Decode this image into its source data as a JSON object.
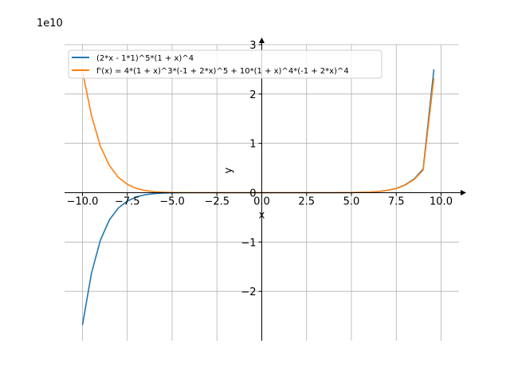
{
  "chart_data": {
    "type": "line",
    "title": "",
    "xlabel": "x",
    "ylabel": "y",
    "offset_text": "1e10",
    "xlim": [
      -11,
      11
    ],
    "ylim": [
      -3.0,
      3.0
    ],
    "y_scale_factor": 10000000000,
    "grid": true,
    "legend_position": "upper-left",
    "x_ticks": [
      "−10.0",
      "−7.5",
      "−5.0",
      "−2.5",
      "0.0",
      "2.5",
      "5.0",
      "7.5",
      "10.0"
    ],
    "x_tick_values": [
      -10,
      -7.5,
      -5,
      -2.5,
      0,
      2.5,
      5,
      7.5,
      10
    ],
    "y_ticks": [
      "−2",
      "−1",
      "0",
      "1",
      "2",
      "3"
    ],
    "y_tick_values": [
      -2,
      -1,
      0,
      1,
      2,
      3
    ],
    "series": [
      {
        "name": "(2*x - 1*1)^5*(1 + x)^4",
        "color": "#1f77b4",
        "x": [
          -10,
          -9.5,
          -9,
          -8.5,
          -8,
          -7.5,
          -7,
          -6.5,
          -6,
          -5.5,
          -5,
          -4,
          -3,
          -2,
          -1,
          0,
          1,
          2,
          3,
          4,
          5,
          5.5,
          6,
          6.5,
          7,
          7.5,
          8,
          8.5,
          9,
          9.6
        ],
        "y": [
          -2.68,
          -1.63,
          -0.96,
          -0.55,
          -0.31,
          -0.17,
          -0.085,
          -0.041,
          -0.019,
          -0.008,
          -0.003,
          0,
          0,
          0,
          0,
          0,
          0,
          0,
          0,
          0.0001,
          0.003,
          0.006,
          0.0121,
          0.024,
          0.047,
          0.088,
          0.16,
          0.28,
          0.48,
          2.5
        ]
      },
      {
        "name": "f'(x) = 4*(1 + x)^3*(-1 + 2*x)^5 + 10*(1 + x)^4*(-1 + 2*x)^4",
        "color": "#ff7f0e",
        "x": [
          -10,
          -9.5,
          -9,
          -8.5,
          -8,
          -7.5,
          -7,
          -6.5,
          -6,
          -5.5,
          -5,
          -4,
          -3,
          -2,
          -1,
          0,
          1,
          2,
          3,
          4,
          5,
          5.5,
          6,
          6.5,
          7,
          7.5,
          8,
          8.5,
          9,
          9.6
        ],
        "y": [
          2.47,
          1.56,
          0.94,
          0.55,
          0.31,
          0.17,
          0.087,
          0.043,
          0.02,
          0.009,
          0.0035,
          0.0003,
          0,
          0,
          0,
          0,
          0,
          0,
          0,
          0.0003,
          0.003,
          0.006,
          0.0125,
          0.025,
          0.047,
          0.086,
          0.155,
          0.27,
          0.46,
          2.33
        ]
      }
    ]
  }
}
